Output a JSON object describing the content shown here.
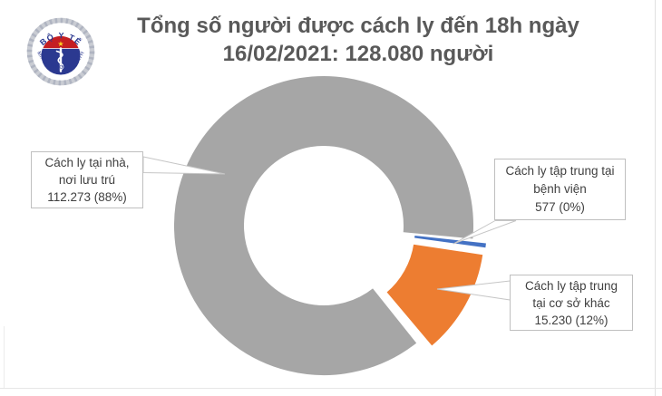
{
  "title": {
    "line1": "Tổng số người được cách ly đến 18h ngày",
    "line2": "16/02/2021: 128.080 người",
    "color": "#595959"
  },
  "logo": {
    "top_text": "BỘ Y TẾ",
    "bottom_text": "MINISTRY OF HEALTH",
    "star": "★",
    "colors": {
      "circle_blue": "#2B3990",
      "band_red": "#C41E22",
      "star_yellow": "#FFD520",
      "wreath_silver": "#C9CCD3"
    }
  },
  "chart_data": {
    "type": "pie",
    "subtype": "donut",
    "title": "Tổng số người được cách ly đến 18h ngày 16/02/2021: 128.080 người",
    "total": 128080,
    "total_display": "128.080",
    "unit": "người",
    "legend_position": "callouts",
    "slices": [
      {
        "name": "Cách ly tại nhà, nơi lưu trú",
        "value": 112273,
        "value_display": "112.273",
        "percent": "88%",
        "color": "#A6A6A6"
      },
      {
        "name": "Cách ly tập trung tại bệnh viện",
        "value": 577,
        "value_display": "577",
        "percent": "0%",
        "color": "#4472C4"
      },
      {
        "name": "Cách ly tập trung tại cơ sở khác",
        "value": 15230,
        "value_display": "15.230",
        "percent": "12%",
        "color": "#ED7D31"
      }
    ]
  },
  "callouts": {
    "home": {
      "line1": "Cách ly tại nhà,",
      "line2": "nơi lưu trú",
      "line3": "112.273 (88%)"
    },
    "hospital": {
      "line1": "Cách ly tập trung tại",
      "line2": "bệnh viện",
      "line3": "577 (0%)"
    },
    "other": {
      "line1": "Cách ly tập trung",
      "line2": "tại cơ sở khác",
      "line3": "15.230 (12%)"
    }
  }
}
